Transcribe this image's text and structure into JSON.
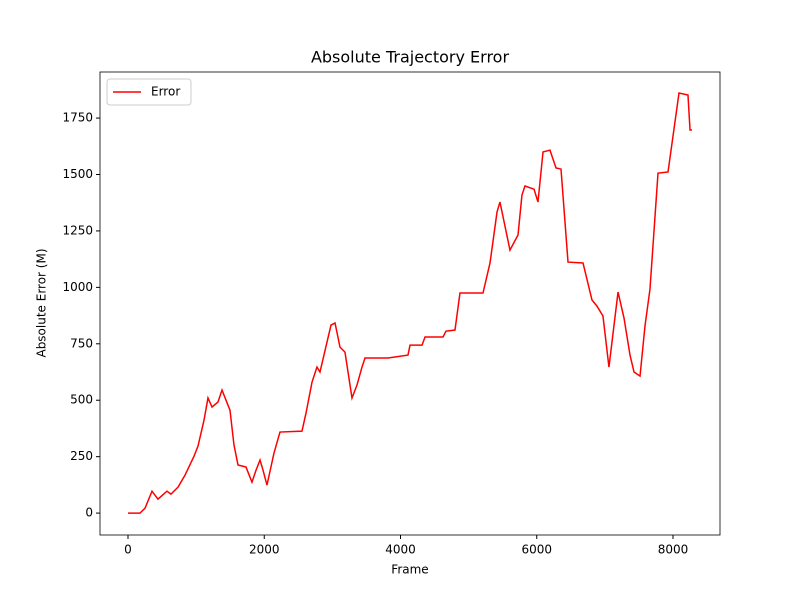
{
  "chart_data": {
    "type": "line",
    "title": "Absolute Trajectory Error",
    "x_label": "Frame",
    "y_label": "Absolute Error (M)",
    "x": [
      0,
      176,
      250,
      352,
      440,
      572,
      631,
      734,
      837,
      969,
      1028,
      1116,
      1174,
      1233,
      1321,
      1380,
      1497,
      1556,
      1615,
      1732,
      1820,
      1879,
      1938,
      1982,
      2040,
      2143,
      2231,
      2554,
      2613,
      2701,
      2774,
      2818,
      2980,
      3039,
      3112,
      3185,
      3288,
      3361,
      3435,
      3479,
      3817,
      4110,
      4140,
      4316,
      4360,
      4624,
      4668,
      4800,
      4873,
      5211,
      5314,
      5417,
      5460,
      5607,
      5725,
      5783,
      5827,
      5960,
      6018,
      6092,
      6194,
      6283,
      6356,
      6459,
      6679,
      6811,
      6884,
      6972,
      7060,
      7193,
      7281,
      7369,
      7428,
      7516,
      7589,
      7662,
      7780,
      7927,
      8088,
      8220,
      8250,
      8279
    ],
    "series": [
      {
        "name": "Error",
        "color": "#ff0000",
        "values": [
          0,
          0,
          22,
          97,
          62,
          97,
          84,
          115,
          168,
          252,
          297,
          412,
          510,
          470,
          492,
          545,
          456,
          301,
          213,
          204,
          137,
          190,
          235,
          190,
          124,
          266,
          359,
          363,
          443,
          580,
          647,
          625,
          833,
          842,
          735,
          713,
          510,
          567,
          647,
          687,
          687,
          700,
          744,
          744,
          780,
          780,
          806,
          811,
          975,
          975,
          1108,
          1334,
          1378,
          1165,
          1232,
          1409,
          1449,
          1435,
          1378,
          1600,
          1608,
          1529,
          1524,
          1112,
          1108,
          944,
          917,
          873,
          647,
          979,
          864,
          700,
          625,
          607,
          829,
          992,
          1506,
          1511,
          1861,
          1852,
          1697,
          1697
        ]
      }
    ],
    "xlim": [
      -411,
      8690
    ],
    "xticks": [
      0,
      2000,
      4000,
      6000,
      8000
    ],
    "ylim": [
      -97,
      1954
    ],
    "yticks": [
      0,
      250,
      500,
      750,
      1000,
      1250,
      1500,
      1750
    ],
    "legend": "upper left",
    "grid": false
  }
}
